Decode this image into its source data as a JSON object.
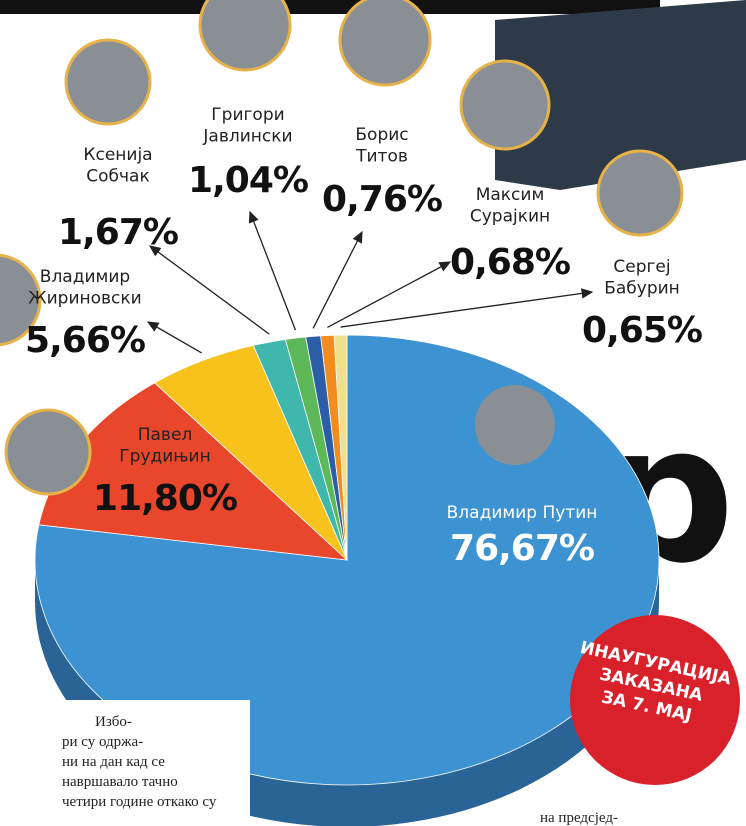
{
  "chart_data": {
    "type": "pie",
    "categories": [
      "Владимир Путин",
      "Павел\nГрудињин",
      "Владимир\nЖириновски",
      "Ксенија\nСобчак",
      "Григори\nЈавлински",
      "Борис\nТитов",
      "Максим\nСурајкин",
      "Сергеј\nБабурин"
    ],
    "values": [
      76.67,
      11.8,
      5.66,
      1.67,
      1.04,
      0.76,
      0.68,
      0.65
    ],
    "value_labels": [
      "76,67%",
      "11,80%",
      "5,66%",
      "1,67%",
      "1,04%",
      "0,76%",
      "0,68%",
      "0,65%"
    ],
    "colors": [
      "#3d93d2",
      "#e8472b",
      "#f7c21c",
      "#3fb7ad",
      "#5db85a",
      "#2b5ea6",
      "#f28c1e",
      "#efe08c"
    ]
  },
  "badge": [
    "ИНАУГУРАЦИЈА",
    "ЗАКАЗАНА",
    "ЗА 7. МАЈ"
  ],
  "big_letter": "р",
  "article_left": [
    "Избо-",
    "ри су одржа-",
    "ни на дан кад се",
    "навршавало тачно",
    "четири године откако су"
  ],
  "article_right": "на предсјед-"
}
